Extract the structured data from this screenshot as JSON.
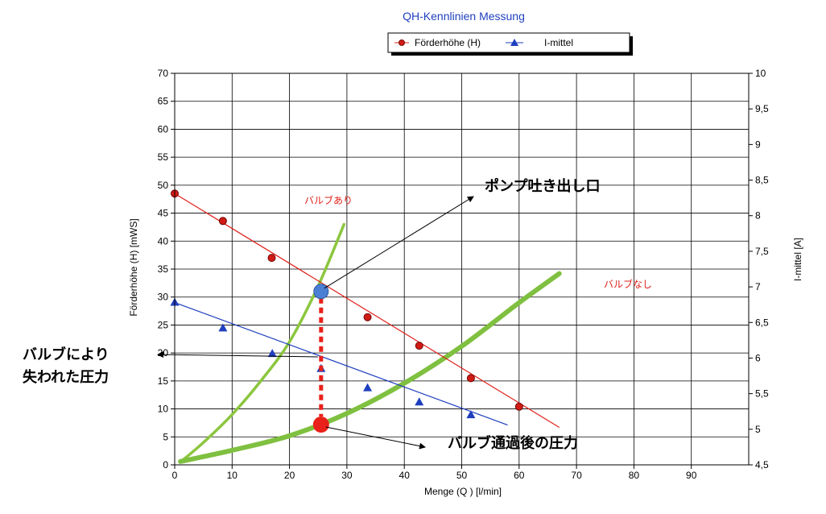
{
  "chart_data": {
    "type": "line",
    "title": "QH-Kennlinien Messung",
    "xlabel": "Menge (Q ) [l/min]",
    "ylabel_left": "Förderhöhe (H)   [mWS]",
    "ylabel_right": "I-mittel   [A]",
    "xlim": [
      0,
      100
    ],
    "ylim_left": [
      0,
      70
    ],
    "ylim_right": [
      4.5,
      10
    ],
    "x_ticks": [
      "0",
      "10",
      "20",
      "30",
      "40",
      "50",
      "60",
      "70",
      "80",
      "90"
    ],
    "y_left_ticks": [
      "0",
      "5",
      "10",
      "15",
      "20",
      "25",
      "30",
      "35",
      "40",
      "45",
      "50",
      "55",
      "60",
      "65",
      "70"
    ],
    "y_right_ticks": [
      "4,5",
      "5",
      "5,5",
      "6",
      "6,5",
      "7",
      "7,5",
      "8",
      "8,5",
      "9",
      "9,5",
      "10"
    ],
    "grid": true,
    "legend_position": "top-center",
    "series": [
      {
        "name": "Förderhöhe (H)",
        "axis": "left",
        "color": "#e0201a",
        "marker": "circle",
        "x": [
          0,
          8.4,
          16.9,
          33.6,
          42.6,
          51.6,
          60
        ],
        "y": [
          48.5,
          43.6,
          37,
          26.4,
          21.3,
          15.5,
          10.4
        ],
        "line_x": [
          0,
          67
        ],
        "line_y": [
          48.5,
          6.7
        ]
      },
      {
        "name": "I-mittel",
        "axis": "right",
        "color": "#1f3fbf",
        "marker": "triangle",
        "x": [
          0,
          8.4,
          17,
          25.5,
          33.6,
          42.6,
          51.6
        ],
        "y": [
          6.78,
          6.42,
          6.06,
          5.85,
          5.58,
          5.38,
          5.2
        ],
        "line_x": [
          0,
          58
        ],
        "line_y": [
          6.78,
          5.06
        ]
      },
      {
        "axis": "left",
        "color": "#8cc63f",
        "x": [
          1,
          5,
          10,
          15,
          20,
          25,
          29.5
        ],
        "y": [
          0.5,
          4,
          9,
          15,
          22,
          32,
          43
        ]
      },
      {
        "axis": "left",
        "color": "#7fc040",
        "x": [
          1,
          10,
          20,
          30,
          40,
          50,
          60,
          67
        ],
        "y": [
          0.6,
          2.6,
          5.2,
          9.2,
          14.6,
          21.2,
          29,
          34.2
        ]
      }
    ],
    "annotations": {
      "valve_on": "バルブあり",
      "valve_off": "バルブなし",
      "pump_outlet": "ポンプ吐き出し口",
      "loss_line1": "バルブにより",
      "loss_line2": "失われた圧力",
      "after_valve": "バルブ通過後の圧力"
    },
    "operating_points": {
      "pump_outlet_point": {
        "x": 25.5,
        "y": 31,
        "color": "#4a7fd4"
      },
      "after_valve_point": {
        "x": 25.5,
        "y": 7.2,
        "color": "#e8211a"
      }
    }
  }
}
